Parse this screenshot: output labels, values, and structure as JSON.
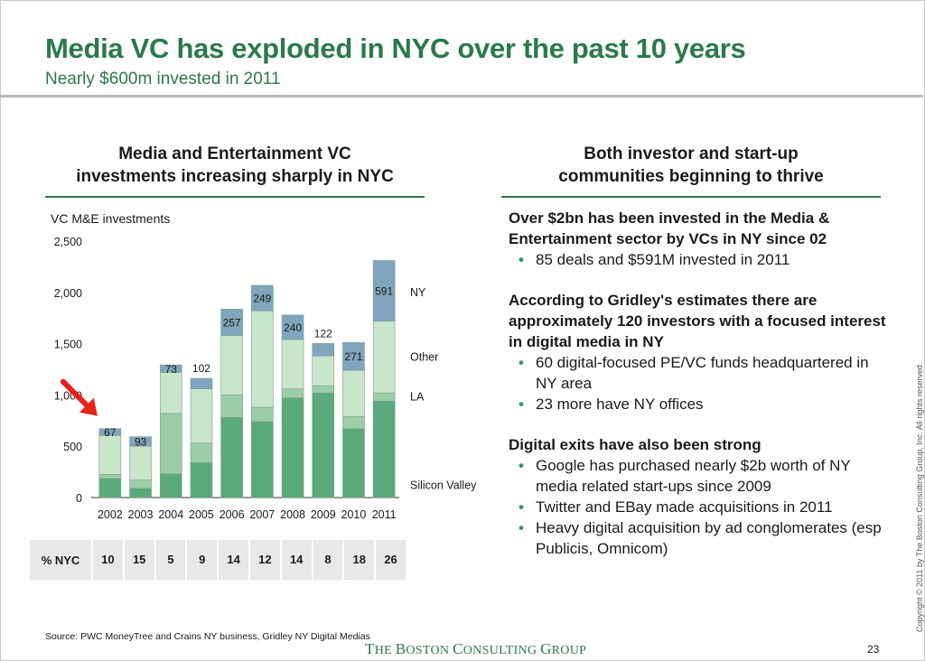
{
  "slide": {
    "title": "Media VC has exploded in NYC over the past 10 years",
    "subtitle": "Nearly $600m invested in 2011",
    "page_number": "23",
    "source": "Source: PWC MoneyTree and Crains NY business, Gridley NY Digital Medias",
    "logo": {
      "the": "T",
      "he": "HE ",
      "b": "B",
      "oston": "OSTON ",
      "c": "C",
      "onsulting": "ONSULTING ",
      "g": "G",
      "roup": "ROUP"
    },
    "copyright": "Copyright © 2011 by The Boston Consulting Group, Inc. All rights reserved."
  },
  "left_column": {
    "heading_line1": "Media and Entertainment VC",
    "heading_line2": "investments increasing sharply in NYC",
    "chart_caption": "VC M&E investments"
  },
  "right_column": {
    "heading_line1": "Both investor and start-up",
    "heading_line2": "communities beginning to thrive",
    "sections": [
      {
        "heading": "Over $2bn has been invested in the Media & Entertainment sector by VCs in NY since 02",
        "bullets": [
          "85 deals and $591M invested in 2011"
        ]
      },
      {
        "heading": "According to Gridley's estimates there are approximately 120 investors with a focused interest in digital media in NY",
        "bullets": [
          "60 digital-focused PE/VC funds headquartered in NY area",
          "23 more have NY offices"
        ]
      },
      {
        "heading": "Digital exits have also been strong",
        "bullets": [
          "Google has purchased nearly $2b worth of NY media related start-ups since 2009",
          "Twitter and EBay made acquisitions in 2011",
          "Heavy digital acquisition by ad conglomerates (esp Publicis, Omnicom)"
        ]
      }
    ]
  },
  "pct_nyc": {
    "label": "% NYC",
    "values": [
      "10",
      "15",
      "5",
      "9",
      "14",
      "12",
      "14",
      "8",
      "18",
      "26"
    ]
  },
  "chart_data": {
    "type": "bar",
    "stacked": true,
    "categories": [
      "2002",
      "2003",
      "2004",
      "2005",
      "2006",
      "2007",
      "2008",
      "2009",
      "2010",
      "2011"
    ],
    "ylim": [
      0,
      2500
    ],
    "yticks": [
      0,
      500,
      1000,
      1500,
      2000,
      2500
    ],
    "ytick_labels": [
      "0",
      "500",
      "1,000",
      "1,500",
      "2,000",
      "2,500"
    ],
    "ylabel": "VC M&E investments",
    "series": [
      {
        "name": "Silicon Valley",
        "color": "#5aa97a",
        "values": [
          185,
          90,
          230,
          340,
          780,
          740,
          970,
          1020,
          670,
          940
        ]
      },
      {
        "name": "LA",
        "color": "#9bcea8",
        "values": [
          40,
          80,
          590,
          190,
          220,
          140,
          90,
          70,
          120,
          80
        ]
      },
      {
        "name": "Other",
        "color": "#c9e6cd",
        "values": [
          380,
          330,
          400,
          530,
          580,
          940,
          480,
          290,
          450,
          700
        ]
      },
      {
        "name": "NY",
        "color": "#7fa6bd",
        "values": [
          67,
          93,
          73,
          102,
          257,
          249,
          240,
          122,
          271,
          591
        ]
      }
    ],
    "ny_labels": [
      "67",
      "93",
      "73",
      "102",
      "257",
      "249",
      "240",
      "122",
      "271",
      "591"
    ],
    "ny_label_boxed": [
      true,
      true,
      true,
      false,
      true,
      true,
      true,
      false,
      true,
      true
    ],
    "legend_placement": "right, aligned with segments of 2011 bar",
    "annotation": "red arrow pointing at 2002 bar",
    "arrow_color": "#e8211b"
  }
}
